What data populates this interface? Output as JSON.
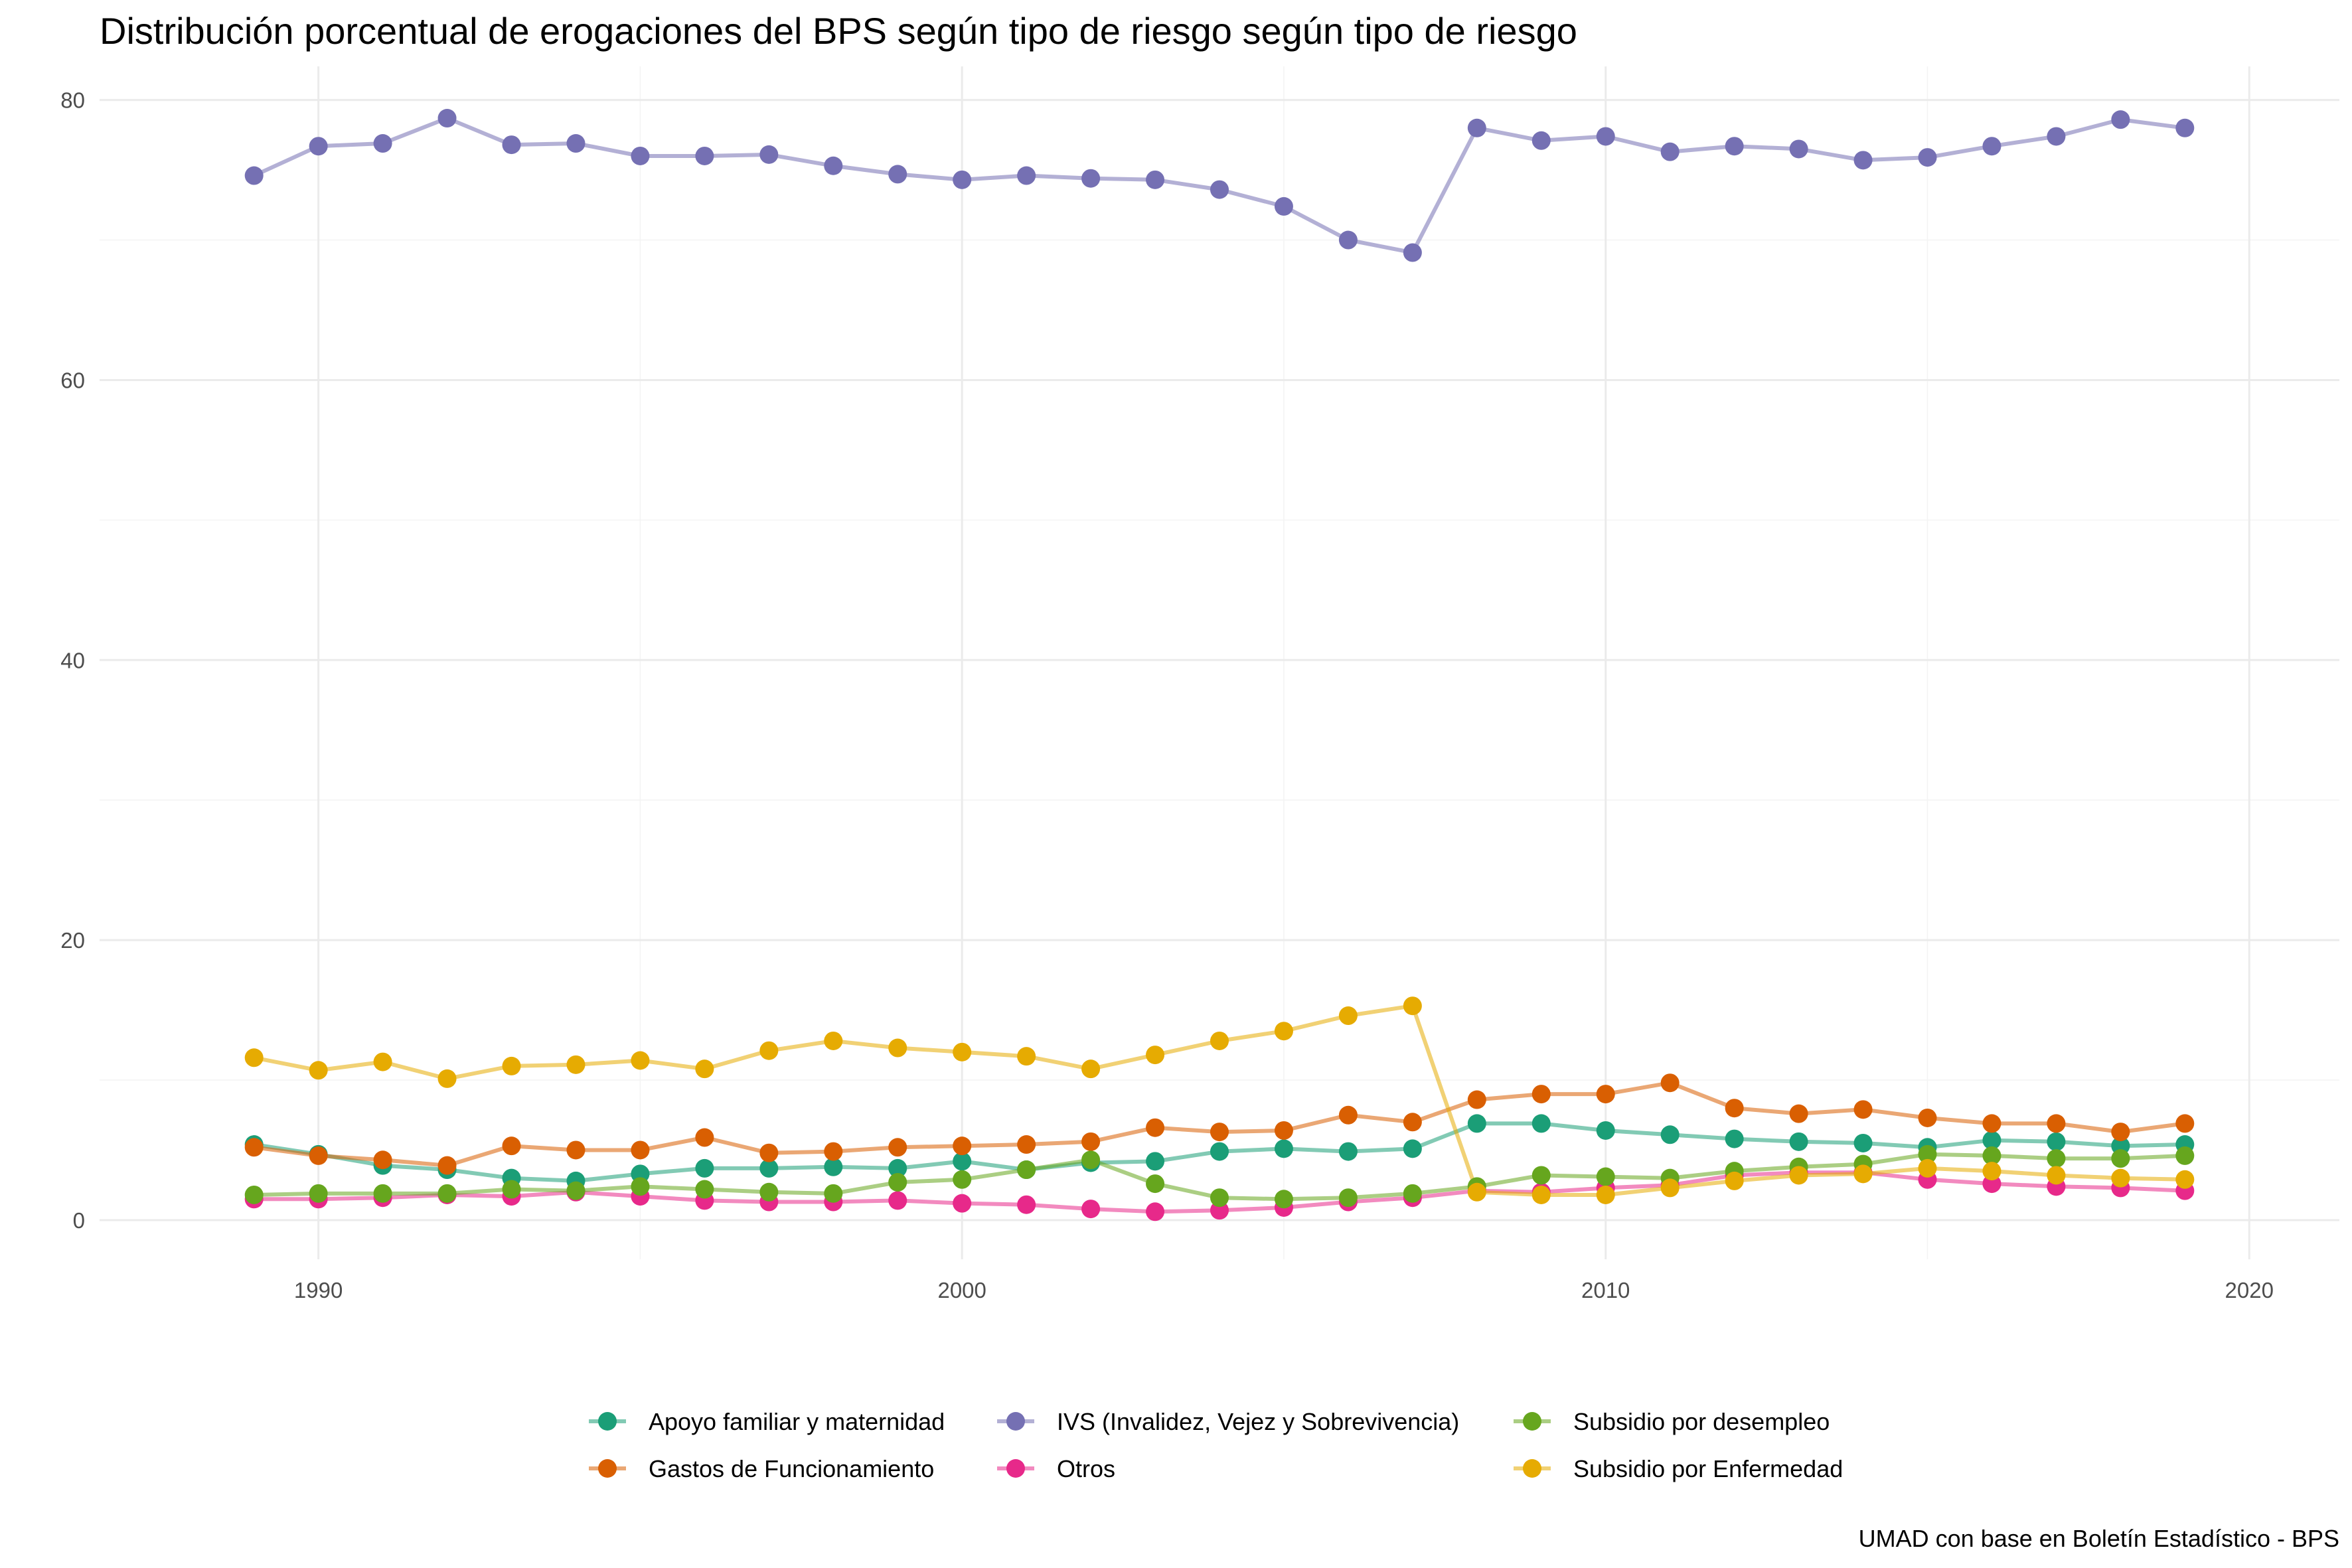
{
  "chart_data": {
    "type": "line",
    "title": "Distribución porcentual de erogaciones del BPS según tipo de riesgo según tipo de riesgo",
    "caption": "UMAD con base en Boletín Estadístico - BPS",
    "xlabel": "",
    "ylabel": "",
    "xlim": [
      1986.6,
      2021.4
    ],
    "ylim": [
      -2.8,
      82.4
    ],
    "x_ticks": [
      1990,
      2000,
      2010,
      2020
    ],
    "y_ticks": [
      0,
      20,
      40,
      60,
      80
    ],
    "grid": true,
    "legend_position": "bottom",
    "x": [
      1989,
      1990,
      1991,
      1992,
      1993,
      1994,
      1995,
      1996,
      1997,
      1998,
      1999,
      2000,
      2001,
      2002,
      2003,
      2004,
      2005,
      2006,
      2007,
      2008,
      2009,
      2010,
      2011,
      2012,
      2013,
      2014,
      2015,
      2016,
      2017,
      2018,
      2019
    ],
    "series": [
      {
        "name": "Apoyo familiar y maternidad",
        "color": "#1b9e77",
        "values": [
          5.4,
          4.7,
          3.9,
          3.6,
          3.0,
          2.8,
          3.3,
          3.7,
          3.7,
          3.8,
          3.7,
          4.2,
          3.6,
          4.1,
          4.2,
          4.9,
          5.1,
          4.9,
          5.1,
          6.9,
          6.9,
          6.4,
          6.1,
          5.8,
          5.6,
          5.5,
          5.2,
          5.7,
          5.6,
          5.3,
          5.4
        ]
      },
      {
        "name": "Gastos de Funcionamiento",
        "color": "#d95f02",
        "values": [
          5.2,
          4.6,
          4.3,
          3.9,
          5.3,
          5.0,
          5.0,
          5.9,
          4.8,
          4.9,
          5.2,
          5.3,
          5.4,
          5.6,
          6.6,
          6.3,
          6.4,
          7.5,
          7.0,
          8.6,
          9.0,
          9.0,
          9.8,
          8.0,
          7.6,
          7.9,
          7.3,
          6.9,
          6.9,
          6.3,
          6.9
        ]
      },
      {
        "name": "IVS (Invalidez, Vejez y Sobrevivencia)",
        "color": "#7570b3",
        "values": [
          74.6,
          76.7,
          76.9,
          78.7,
          76.8,
          76.9,
          76.0,
          76.0,
          76.1,
          75.3,
          74.7,
          74.3,
          74.6,
          74.4,
          74.3,
          73.6,
          72.4,
          70.0,
          69.1,
          78.0,
          77.1,
          77.4,
          76.3,
          76.7,
          76.5,
          75.7,
          75.9,
          76.7,
          77.4,
          78.6,
          78.0
        ]
      },
      {
        "name": "Otros",
        "color": "#e7298a",
        "values": [
          1.5,
          1.5,
          1.6,
          1.8,
          1.7,
          2.0,
          1.7,
          1.4,
          1.3,
          1.3,
          1.4,
          1.2,
          1.1,
          0.8,
          0.6,
          0.7,
          0.9,
          1.3,
          1.6,
          2.1,
          2.0,
          2.3,
          2.5,
          3.2,
          3.4,
          3.4,
          2.9,
          2.6,
          2.4,
          2.3,
          2.1
        ]
      },
      {
        "name": "Subsidio por desempleo",
        "color": "#66a61e",
        "values": [
          1.8,
          1.9,
          1.9,
          1.9,
          2.2,
          2.1,
          2.4,
          2.2,
          2.0,
          1.9,
          2.7,
          2.9,
          3.6,
          4.3,
          2.6,
          1.6,
          1.5,
          1.6,
          1.9,
          2.4,
          3.2,
          3.1,
          3.0,
          3.5,
          3.8,
          4.0,
          4.7,
          4.6,
          4.4,
          4.4,
          4.6
        ]
      },
      {
        "name": "Subsidio por Enfermedad",
        "color": "#e6ab02",
        "values": [
          11.6,
          10.7,
          11.3,
          10.1,
          11.0,
          11.1,
          11.4,
          10.8,
          12.1,
          12.8,
          12.3,
          12.0,
          11.7,
          10.8,
          11.8,
          12.8,
          13.5,
          14.6,
          15.3,
          2.0,
          1.8,
          1.8,
          2.3,
          2.8,
          3.2,
          3.3,
          3.7,
          3.5,
          3.2,
          3.0,
          2.9
        ]
      }
    ]
  }
}
